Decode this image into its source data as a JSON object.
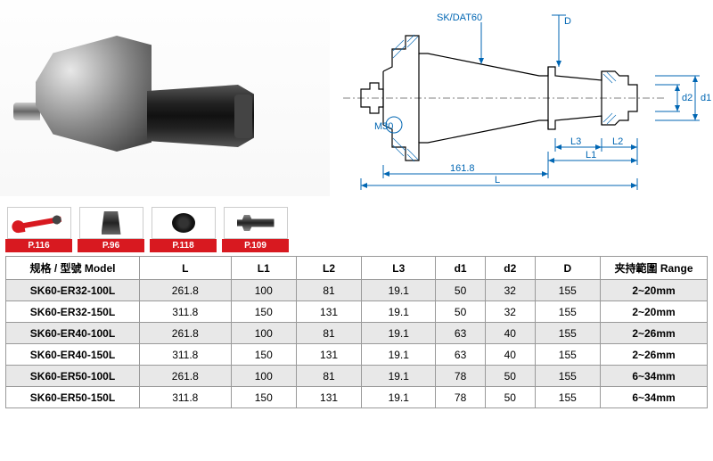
{
  "diagram": {
    "labels": {
      "taper": "SK/DAT60",
      "thread": "M30",
      "base_len": "161.8",
      "L": "L",
      "L1": "L1",
      "L2": "L2",
      "L3": "L3",
      "D": "D",
      "d1": "d1",
      "d2": "d2"
    },
    "colors": {
      "dim": "#0066b3",
      "outline": "#000000"
    }
  },
  "accessories": [
    {
      "name": "wrench",
      "page": "P.116"
    },
    {
      "name": "collet",
      "page": "P.96"
    },
    {
      "name": "nut",
      "page": "P.118"
    },
    {
      "name": "pull-stud",
      "page": "P.109"
    }
  ],
  "table": {
    "headers": {
      "model": "规格 / 型號  Model",
      "L": "L",
      "L1": "L1",
      "L2": "L2",
      "L3": "L3",
      "d1": "d1",
      "d2": "d2",
      "D": "D",
      "range": "夹持範圍 Range"
    },
    "rows": [
      {
        "model": "SK60-ER32-100L",
        "L": "261.8",
        "L1": "100",
        "L2": "81",
        "L3": "19.1",
        "d1": "50",
        "d2": "32",
        "D": "155",
        "range": "2~20mm"
      },
      {
        "model": "SK60-ER32-150L",
        "L": "311.8",
        "L1": "150",
        "L2": "131",
        "L3": "19.1",
        "d1": "50",
        "d2": "32",
        "D": "155",
        "range": "2~20mm"
      },
      {
        "model": "SK60-ER40-100L",
        "L": "261.8",
        "L1": "100",
        "L2": "81",
        "L3": "19.1",
        "d1": "63",
        "d2": "40",
        "D": "155",
        "range": "2~26mm"
      },
      {
        "model": "SK60-ER40-150L",
        "L": "311.8",
        "L1": "150",
        "L2": "131",
        "L3": "19.1",
        "d1": "63",
        "d2": "40",
        "D": "155",
        "range": "2~26mm"
      },
      {
        "model": "SK60-ER50-100L",
        "L": "261.8",
        "L1": "100",
        "L2": "81",
        "L3": "19.1",
        "d1": "78",
        "d2": "50",
        "D": "155",
        "range": "6~34mm"
      },
      {
        "model": "SK60-ER50-150L",
        "L": "311.8",
        "L1": "150",
        "L2": "131",
        "L3": "19.1",
        "d1": "78",
        "d2": "50",
        "D": "155",
        "range": "6~34mm"
      }
    ]
  }
}
